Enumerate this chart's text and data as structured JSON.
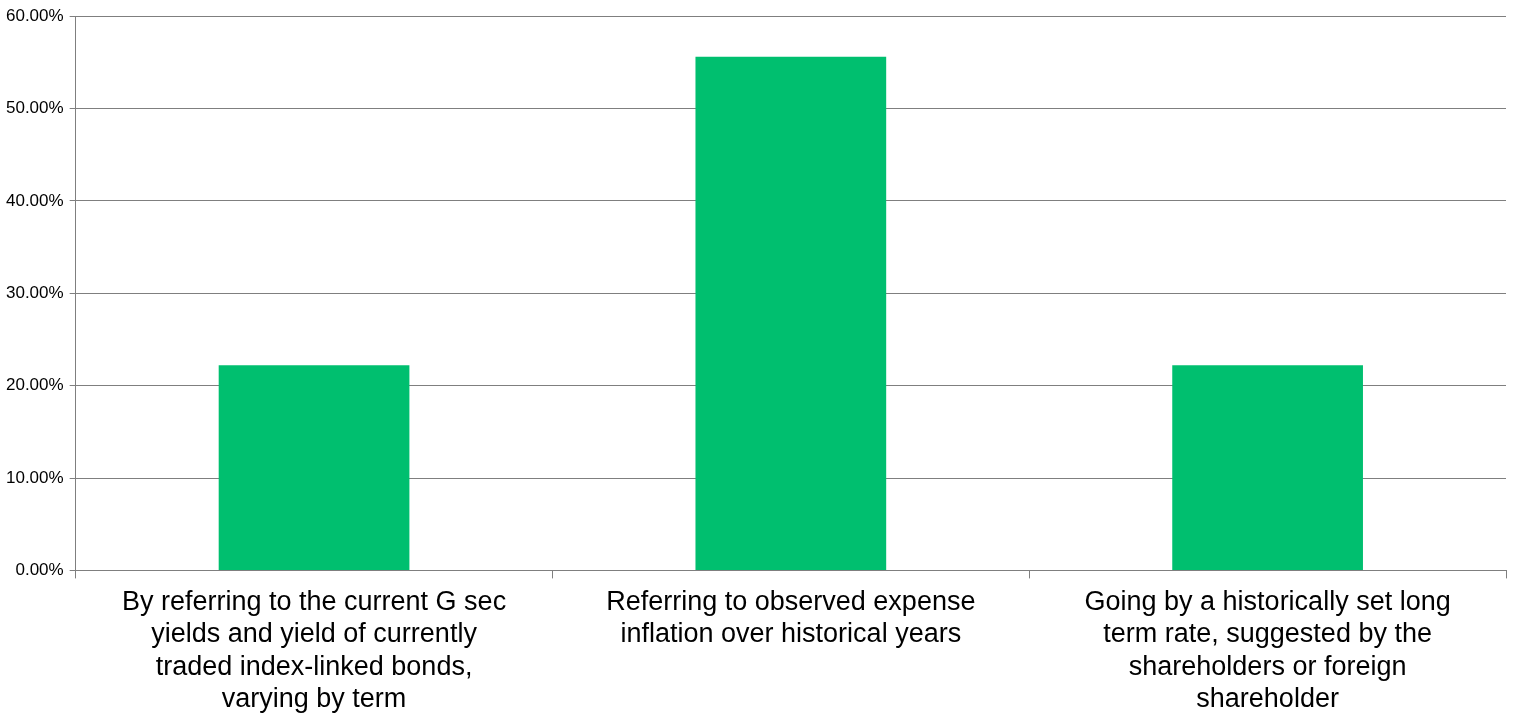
{
  "chart_data": {
    "type": "bar",
    "categories": [
      "By referring to the current G sec yields and yield of currently traded index-linked bonds, varying by term",
      "Referring to observed expense inflation over historical years",
      "Going by a historically set long term rate, suggested by the shareholders or foreign shareholder"
    ],
    "values": [
      22.2,
      55.6,
      22.2
    ],
    "color": "#00bf6f",
    "ylim": [
      0,
      60
    ],
    "yticks": [
      {
        "value": 0,
        "label": "0.00%"
      },
      {
        "value": 10,
        "label": "10.00%"
      },
      {
        "value": 20,
        "label": "20.00%"
      },
      {
        "value": 30,
        "label": "30.00%"
      },
      {
        "value": 40,
        "label": "40.00%"
      },
      {
        "value": 50,
        "label": "50.00%"
      },
      {
        "value": 60,
        "label": "60.00%"
      }
    ],
    "grid": "y",
    "legend": false
  }
}
